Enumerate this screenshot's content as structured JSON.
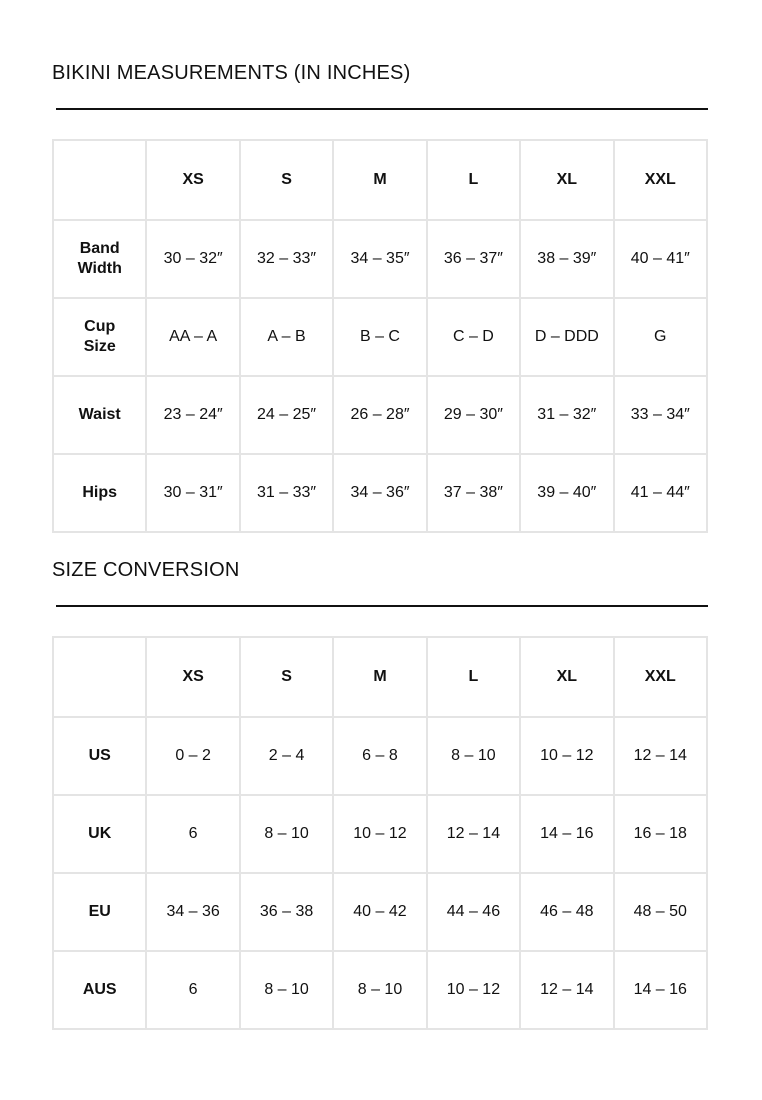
{
  "measurements": {
    "title": "BIKINI MEASUREMENTS (IN INCHES)",
    "columns": [
      "",
      "XS",
      "S",
      "M",
      "L",
      "XL",
      "XXL"
    ],
    "rows": [
      {
        "label": "Band Width",
        "values": [
          "30 – 32″",
          "32 – 33″",
          "34 – 35″",
          "36 – 37″",
          "38 – 39″",
          "40 – 41″"
        ]
      },
      {
        "label": "Cup Size",
        "values": [
          "AA – A",
          "A – B",
          "B – C",
          "C – D",
          "D – DDD",
          "G"
        ]
      },
      {
        "label": "Waist",
        "values": [
          "23 – 24″",
          "24 – 25″",
          "26 – 28″",
          "29 – 30″",
          "31 – 32″",
          "33 – 34″"
        ]
      },
      {
        "label": "Hips",
        "values": [
          "30 – 31″",
          "31 – 33″",
          "34 – 36″",
          "37 – 38″",
          "39 – 40″",
          "41 – 44″"
        ]
      }
    ]
  },
  "conversion": {
    "title": "SIZE CONVERSION",
    "columns": [
      "",
      "XS",
      "S",
      "M",
      "L",
      "XL",
      "XXL"
    ],
    "rows": [
      {
        "label": "US",
        "values": [
          "0 – 2",
          "2 – 4",
          "6 – 8",
          "8 – 10",
          "10 – 12",
          "12 – 14"
        ]
      },
      {
        "label": "UK",
        "values": [
          "6",
          "8 – 10",
          "10 – 12",
          "12 – 14",
          "14 – 16",
          "16 – 18"
        ]
      },
      {
        "label": "EU",
        "values": [
          "34 – 36",
          "36 – 38",
          "40 – 42",
          "44 – 46",
          "46 – 48",
          "48 – 50"
        ]
      },
      {
        "label": "AUS",
        "values": [
          "6",
          "8 – 10",
          "8 – 10",
          "10 – 12",
          "12 – 14",
          "14 – 16"
        ]
      }
    ]
  }
}
